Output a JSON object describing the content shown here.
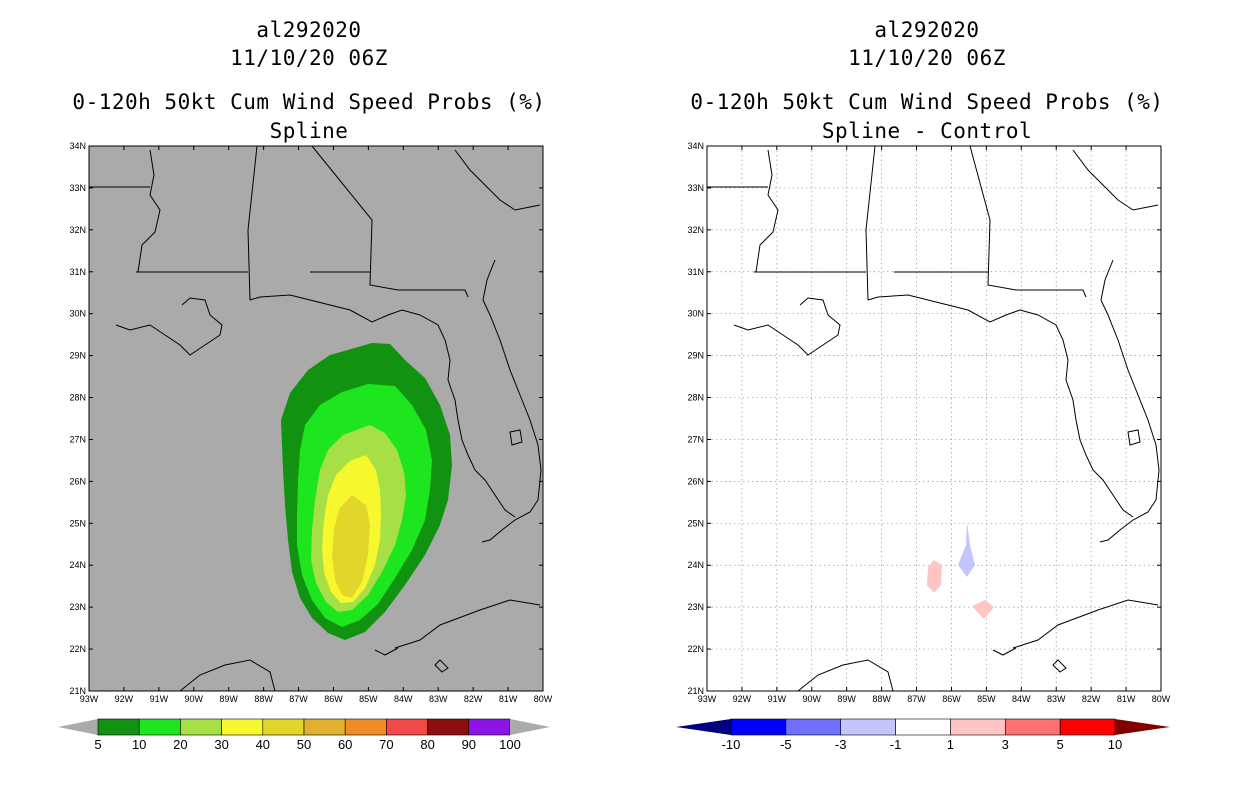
{
  "left": {
    "storm_id": "al292020",
    "datetime": "11/10/20 06Z",
    "product": "0-120h 50kt Cum Wind Speed Probs (%)",
    "subtitle": "Spline",
    "lat_labels": [
      "34N",
      "33N",
      "32N",
      "31N",
      "30N",
      "29N",
      "28N",
      "27N",
      "26N",
      "25N",
      "24N",
      "23N",
      "22N",
      "21N"
    ],
    "lon_labels": [
      "93W",
      "92W",
      "91W",
      "90W",
      "89W",
      "88W",
      "87W",
      "86W",
      "85W",
      "84W",
      "83W",
      "82W",
      "81W",
      "80W"
    ],
    "colorbar": {
      "labels": [
        "5",
        "10",
        "20",
        "30",
        "40",
        "50",
        "60",
        "70",
        "80",
        "90",
        "100"
      ],
      "colors": [
        "#119311",
        "#1ee61e",
        "#a6e046",
        "#f7f72e",
        "#e3d62a",
        "#e2b02f",
        "#ef8c28",
        "#f14848",
        "#8e0d0d",
        "#8c14e6"
      ]
    },
    "background_color": "#aaaaaa"
  },
  "right": {
    "storm_id": "al292020",
    "datetime": "11/10/20 06Z",
    "product": "0-120h 50kt Cum Wind Speed Probs (%)",
    "subtitle": "Spline - Control",
    "lat_labels": [
      "34N",
      "33N",
      "32N",
      "31N",
      "30N",
      "29N",
      "28N",
      "27N",
      "26N",
      "25N",
      "24N",
      "23N",
      "22N",
      "21N"
    ],
    "lon_labels": [
      "93W",
      "92W",
      "91W",
      "90W",
      "89W",
      "88W",
      "87W",
      "86W",
      "85W",
      "84W",
      "83W",
      "82W",
      "81W",
      "80W"
    ],
    "colorbar": {
      "labels": [
        "-10",
        "-5",
        "-3",
        "-1",
        "1",
        "3",
        "5",
        "10"
      ],
      "colors": [
        "#000080",
        "#0000ff",
        "#7070ff",
        "#c4c4ff",
        "#ffffff",
        "#ffc4c4",
        "#ff7070",
        "#ff0000",
        "#800000"
      ]
    }
  }
}
